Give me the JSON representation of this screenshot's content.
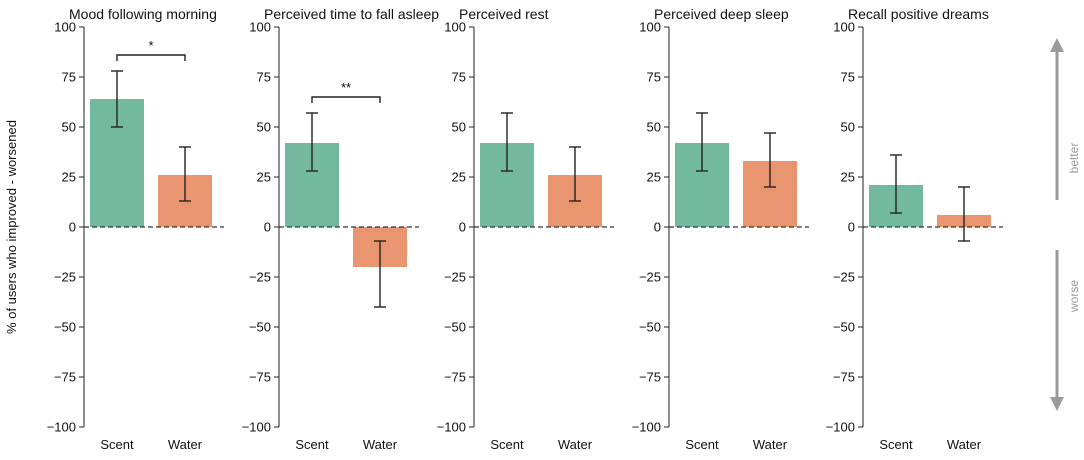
{
  "chart_data": {
    "type": "bar",
    "ylabel": "% of users who improved - worsened",
    "ylim": [
      -100,
      100
    ],
    "yticks": [
      -100,
      -75,
      -50,
      -25,
      0,
      25,
      50,
      75,
      100
    ],
    "categories": [
      "Scent",
      "Water"
    ],
    "colors": {
      "Scent": "#72b9a0",
      "Water": "#e9956f"
    },
    "zero_line": "dashed",
    "panels": [
      {
        "title": "Mood following morning",
        "values": [
          64,
          26
        ],
        "err_low": [
          50,
          13
        ],
        "err_high": [
          78,
          40
        ],
        "significance": "*"
      },
      {
        "title": "Perceived time to fall asleep",
        "values": [
          42,
          -20
        ],
        "err_low": [
          28,
          -40
        ],
        "err_high": [
          57,
          -7
        ],
        "significance": "**"
      },
      {
        "title": "Perceived rest",
        "values": [
          42,
          26
        ],
        "err_low": [
          28,
          13
        ],
        "err_high": [
          57,
          40
        ],
        "significance": ""
      },
      {
        "title": "Perceived deep sleep",
        "values": [
          42,
          33
        ],
        "err_low": [
          28,
          20
        ],
        "err_high": [
          57,
          47
        ],
        "significance": ""
      },
      {
        "title": "Recall positive dreams",
        "values": [
          21,
          6
        ],
        "err_low": [
          7,
          -7
        ],
        "err_high": [
          36,
          20
        ],
        "significance": ""
      }
    ],
    "annotations": {
      "up": "better",
      "down": "worse"
    }
  }
}
